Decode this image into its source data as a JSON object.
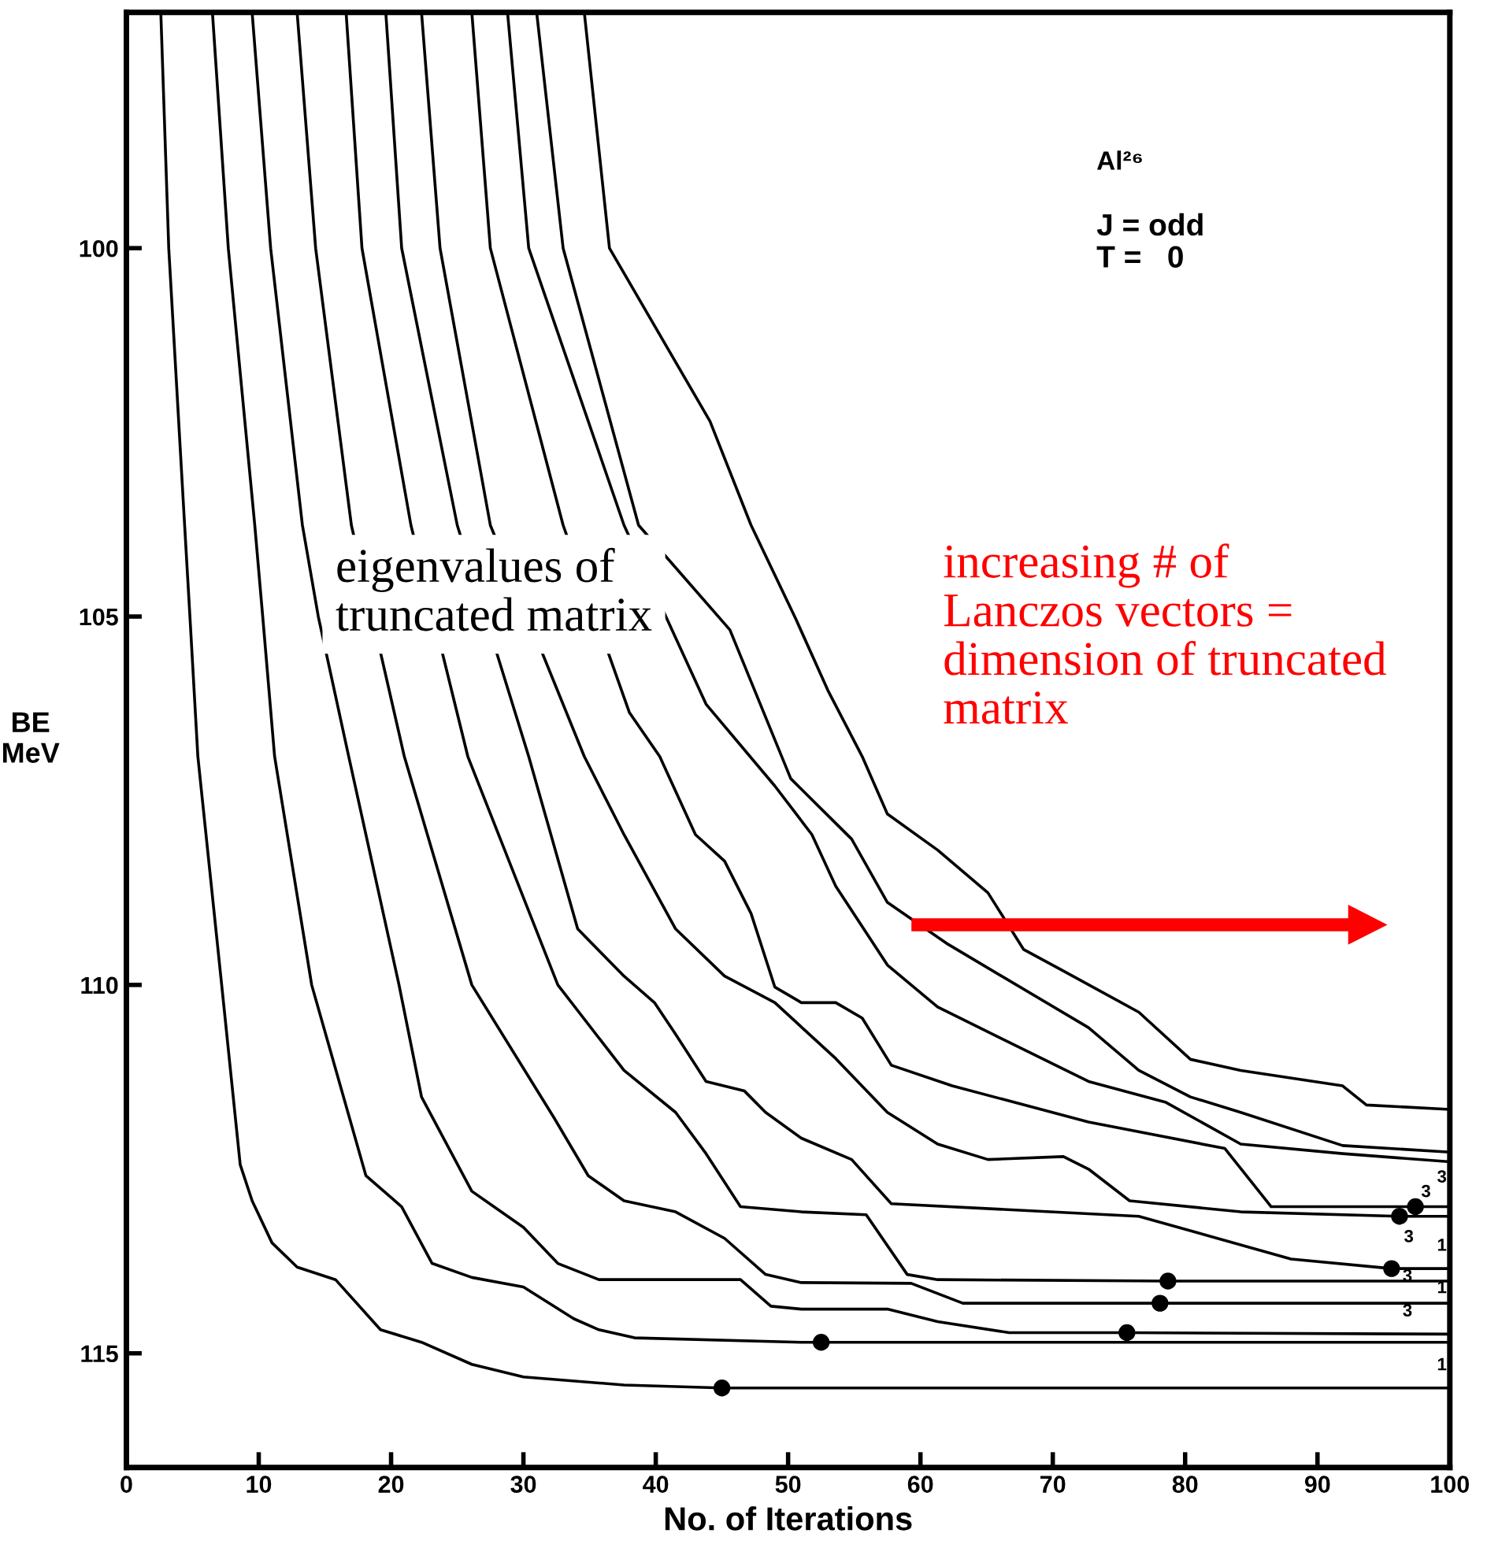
{
  "chart_data": {
    "type": "line",
    "xlabel": "No. of Iterations",
    "ylabel": "BE\nMeV",
    "xlim": [
      0,
      100
    ],
    "xticks": [
      0,
      10,
      20,
      30,
      40,
      50,
      60,
      70,
      80,
      90,
      100
    ],
    "ylim": [
      116.55,
      96.8
    ],
    "yticks": [
      100,
      105,
      110,
      115
    ],
    "grid": false,
    "legend": false,
    "marker": "none",
    "line_style": "solid",
    "annotations": [
      "Al²⁶",
      "J = odd",
      "T =   0",
      "eigenvalues of\ntruncated matrix",
      "increasing # of\nLanczos vectors =\ndimension of truncated\nmatrix",
      "3",
      "3",
      "3",
      "1",
      "3",
      "1",
      "3",
      "1"
    ],
    "series": [
      {
        "type": "line",
        "color": "#000000",
        "x": [
          2.6,
          3.2,
          4.4,
          4.8,
          5.4,
          7.2,
          8.6,
          9.5,
          11,
          12.9,
          15.8,
          19.2,
          22.3,
          26.1,
          30,
          37.6,
          45,
          100
        ],
        "values": [
          96.8,
          100,
          103.76,
          105,
          106.9,
          110,
          112.44,
          112.93,
          113.5,
          113.83,
          114.0,
          114.68,
          114.85,
          115.15,
          115.32,
          115.43,
          115.47,
          115.47
        ]
      },
      {
        "type": "line",
        "color": "#000000",
        "x": [
          6.5,
          7.7,
          9.7,
          10.3,
          11.2,
          14.0,
          18.1,
          20.8,
          23.1,
          26.1,
          30.0,
          33.8,
          35.7,
          38.4,
          51,
          100
        ],
        "values": [
          96.8,
          100,
          103.76,
          105,
          106.9,
          110,
          112.59,
          113.01,
          113.78,
          113.97,
          114.1,
          114.53,
          114.68,
          114.79,
          114.85,
          114.85
        ]
      },
      {
        "type": "line",
        "color": "#000000",
        "x": [
          9.5,
          10.9,
          13.3,
          14.5,
          16.8,
          20.6,
          22.3,
          26.1,
          30,
          32.6,
          35.7,
          46.4,
          48.7,
          51,
          57.5,
          61.3,
          66.7,
          75.6,
          100
        ],
        "values": [
          96.8,
          100,
          103.76,
          105,
          106.9,
          110,
          111.52,
          112.8,
          113.29,
          113.78,
          114.0,
          114.0,
          114.36,
          114.4,
          114.4,
          114.57,
          114.72,
          114.72,
          114.74
        ]
      },
      {
        "color": "#000000",
        "x": [
          12.9,
          14.3,
          17,
          21.0,
          26.1,
          32.3,
          34.9,
          37.6,
          41.5,
          45.2,
          48.3,
          51,
          59.3,
          63.2,
          78.1,
          100
        ],
        "values": [
          96.8,
          100,
          103.76,
          106.9,
          110,
          111.8,
          112.59,
          112.93,
          113.08,
          113.44,
          113.93,
          114.04,
          114.05,
          114.32,
          114.32,
          114.32
        ]
      },
      {
        "color": "#000000",
        "x": [
          16.6,
          17.8,
          21.5,
          25.8,
          32.6,
          37.6,
          41.5,
          43.8,
          46.4,
          51,
          55.9,
          59,
          61.3,
          78.7,
          100
        ],
        "values": [
          96.8,
          100,
          103.76,
          106.9,
          110,
          111.16,
          111.73,
          112.29,
          113.01,
          113.08,
          113.12,
          113.93,
          114.0,
          114.02,
          114.02
        ]
      },
      {
        "color": "#000000",
        "x": [
          19.6,
          20.8,
          25,
          30.4,
          34.1,
          37.6,
          39.9,
          41.5,
          43.8,
          46.7,
          48.3,
          51,
          54.8,
          57.8,
          76.5,
          88,
          95.6,
          100
        ],
        "values": [
          96.8,
          100,
          103.76,
          106.9,
          109.24,
          109.88,
          110.24,
          110.67,
          111.31,
          111.44,
          111.73,
          112.08,
          112.37,
          112.97,
          113.14,
          113.72,
          113.85,
          113.85
        ]
      },
      {
        "color": "#000000",
        "x": [
          22.3,
          23.7,
          27.5,
          34.6,
          37.6,
          41.5,
          45.2,
          49,
          53.6,
          57.5,
          61.3,
          65.1,
          70.8,
          72.7,
          75.8,
          84.2,
          96.2,
          100
        ],
        "values": [
          96.8,
          100,
          103.76,
          106.9,
          107.96,
          109.24,
          109.88,
          110.24,
          111.0,
          111.73,
          112.16,
          112.37,
          112.33,
          112.5,
          112.93,
          113.08,
          113.14,
          113.14
        ]
      },
      {
        "color": "#000000",
        "x": [
          26.1,
          27.5,
          33,
          38,
          40.3,
          43,
          45.2,
          47.2,
          49,
          51,
          53.6,
          55.6,
          57.8,
          62.4,
          72.7,
          83,
          86.5,
          97.4,
          100
        ],
        "values": [
          96.8,
          100,
          103.76,
          106.3,
          106.9,
          107.96,
          108.32,
          109.03,
          110.03,
          110.24,
          110.24,
          110.45,
          111.09,
          111.37,
          111.86,
          112.22,
          113.01,
          113.01,
          113.01
        ]
      },
      {
        "color": "#000000",
        "x": [
          28.8,
          30.4,
          37.6,
          43.8,
          49,
          51.8,
          53.6,
          57.5,
          61.3,
          72.7,
          78.5,
          84.2,
          91.9,
          100
        ],
        "values": [
          96.8,
          100,
          103.76,
          106.19,
          107.3,
          107.96,
          108.66,
          109.73,
          110.3,
          111.31,
          111.59,
          112.16,
          112.29,
          112.4
        ]
      },
      {
        "type": "line",
        "color": "#000000",
        "x": [
          31,
          33,
          38.7,
          45.6,
          50.2,
          54.8,
          57.5,
          62.1,
          72.7,
          76.5,
          80.4,
          84.2,
          91.9,
          100
        ],
        "values": [
          96.8,
          100,
          103.76,
          105.18,
          107.2,
          108.02,
          108.88,
          109.45,
          110.58,
          111.16,
          111.52,
          111.73,
          112.18,
          112.27
        ]
      },
      {
        "type": "line",
        "color": "#000000",
        "x": [
          34.6,
          36.5,
          44.1,
          47.2,
          50.6,
          53,
          55.6,
          57.5,
          61.3,
          65.1,
          67.8,
          70.8,
          76.5,
          80.4,
          84.2,
          91.9,
          93.7,
          100
        ],
        "values": [
          96.8,
          100,
          102.35,
          103.76,
          105.04,
          106,
          106.9,
          107.68,
          108.17,
          108.75,
          109.52,
          109.81,
          110.37,
          111.01,
          111.16,
          111.37,
          111.63,
          111.69
        ]
      },
      {
        "type": "scatter",
        "color": "#000000",
        "marker": "circle",
        "x": [
          45,
          52.5,
          75.6,
          78.1,
          78.7,
          95.6,
          96.2,
          97.4
        ],
        "values": [
          115.47,
          114.85,
          114.72,
          114.32,
          114.02,
          113.85,
          113.14,
          113.01
        ]
      }
    ]
  }
}
